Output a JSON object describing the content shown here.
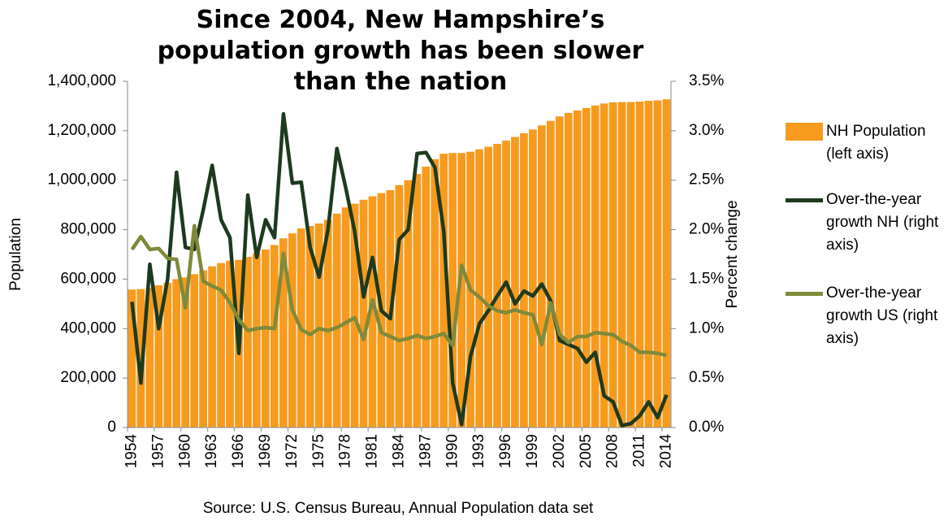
{
  "chart_data": {
    "type": "bar",
    "title": "Since 2004, New Hampshire’s population growth has been slower than the nation",
    "source": "Source: U.S. Census Bureau, Annual Population data set",
    "ylabel": "Population",
    "y2label": "Percent change",
    "categories": [
      "1954",
      null,
      null,
      "1957",
      null,
      null,
      "1960",
      null,
      null,
      "1963",
      null,
      null,
      "1966",
      null,
      null,
      "1969",
      null,
      null,
      "1972",
      null,
      null,
      "1975",
      null,
      null,
      "1978",
      null,
      null,
      "1981",
      null,
      null,
      "1984",
      null,
      null,
      "1987",
      null,
      null,
      "1990",
      null,
      null,
      "1993",
      null,
      null,
      "1996",
      null,
      null,
      "1999",
      null,
      null,
      "2002",
      null,
      null,
      "2005",
      null,
      null,
      "2008",
      null,
      null,
      "2011",
      null,
      null,
      "2014"
    ],
    "series": [
      {
        "name": "NH Population (left axis)",
        "type": "bar",
        "color": "#f79b1f",
        "values": [
          558000,
          560000,
          565000,
          575000,
          585000,
          600000,
          607000,
          620000,
          635000,
          652000,
          665000,
          675000,
          678000,
          690000,
          705000,
          720000,
          738000,
          765000,
          785000,
          805000,
          815000,
          825000,
          840000,
          865000,
          890000,
          905000,
          921000,
          935000,
          948000,
          960000,
          980000,
          1000000,
          1025000,
          1055000,
          1085000,
          1107000,
          1110000,
          1110000,
          1115000,
          1125000,
          1135000,
          1147000,
          1160000,
          1175000,
          1190000,
          1205000,
          1222000,
          1240000,
          1258000,
          1272000,
          1282000,
          1292000,
          1302000,
          1310000,
          1315000,
          1316000,
          1316000,
          1318000,
          1321000,
          1323000,
          1327000
        ]
      },
      {
        "name": "Over-the-year growth NH (right axis)",
        "type": "line",
        "axis": "y2",
        "color": "#1e3a1e",
        "values": [
          1.27,
          0.45,
          1.65,
          1.0,
          1.5,
          2.58,
          1.82,
          1.8,
          2.2,
          2.65,
          2.1,
          1.92,
          0.75,
          2.35,
          1.72,
          2.1,
          1.92,
          3.17,
          2.47,
          2.48,
          1.82,
          1.52,
          2.0,
          2.82,
          2.42,
          1.98,
          1.32,
          1.72,
          1.18,
          1.1,
          1.9,
          2.0,
          2.77,
          2.78,
          2.63,
          1.98,
          0.45,
          0.03,
          0.72,
          1.05,
          1.18,
          1.33,
          1.47,
          1.25,
          1.38,
          1.33,
          1.45,
          1.28,
          0.88,
          0.84,
          0.8,
          0.66,
          0.76,
          0.32,
          0.26,
          0.02,
          0.04,
          0.12,
          0.26,
          0.1,
          0.33
        ]
      },
      {
        "name": "Over-the-year growth US (right axis)",
        "type": "line",
        "axis": "y2",
        "color": "#7f8a3a",
        "values": [
          1.8,
          1.93,
          1.8,
          1.81,
          1.71,
          1.7,
          1.21,
          2.04,
          1.48,
          1.43,
          1.39,
          1.26,
          1.09,
          0.98,
          1.0,
          1.01,
          1.0,
          1.76,
          1.19,
          0.99,
          0.94,
          1.0,
          0.98,
          1.01,
          1.06,
          1.11,
          0.89,
          1.29,
          0.96,
          0.92,
          0.88,
          0.9,
          0.93,
          0.9,
          0.92,
          0.95,
          0.83,
          1.64,
          1.39,
          1.32,
          1.23,
          1.18,
          1.16,
          1.19,
          1.16,
          1.14,
          0.84,
          1.26,
          0.94,
          0.86,
          0.92,
          0.92,
          0.96,
          0.95,
          0.94,
          0.87,
          0.83,
          0.76,
          0.76,
          0.75,
          0.73
        ]
      }
    ],
    "ylim": [
      0,
      1400000
    ],
    "yticks": [
      0,
      {
        "value": 200000,
        "label": "200,000"
      },
      {
        "value": 400000,
        "label": "400,000"
      },
      {
        "value": 600000,
        "label": "600,000"
      },
      {
        "value": 800000,
        "label": "800,000"
      },
      {
        "value": 1000000,
        "label": "1,000,000"
      },
      {
        "value": 1200000,
        "label": "1,200,000"
      },
      {
        "value": 1400000,
        "label": "1,400,000"
      }
    ],
    "y2lim": [
      0,
      3.5
    ],
    "y2ticks": [
      {
        "value": 0,
        "label": "0.0%"
      },
      {
        "value": 0.5,
        "label": "0.5%"
      },
      {
        "value": 1,
        "label": "1.0%"
      },
      {
        "value": 1.5,
        "label": "1.5%"
      },
      {
        "value": 2,
        "label": "2.0%"
      },
      {
        "value": 2.5,
        "label": "2.5%"
      },
      {
        "value": 3,
        "label": "3.0%"
      },
      {
        "value": 3.5,
        "label": "3.5%"
      }
    ],
    "grid": false,
    "legend": "right"
  }
}
